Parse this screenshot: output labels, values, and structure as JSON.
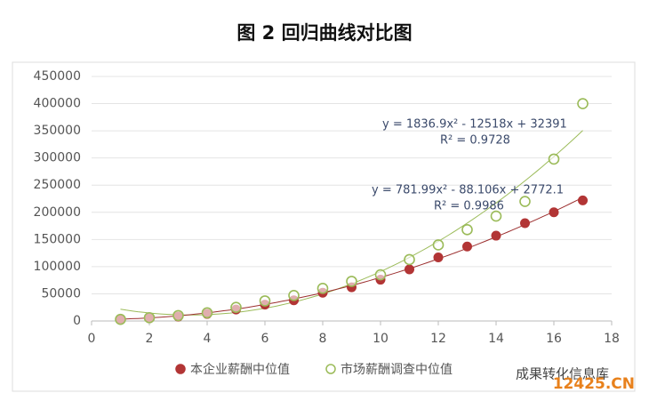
{
  "chart_data": {
    "type": "scatter",
    "title": "图 2 回归曲线对比图",
    "x": [
      1,
      2,
      3,
      4,
      5,
      6,
      7,
      8,
      9,
      10,
      11,
      12,
      13,
      14,
      15,
      16,
      17
    ],
    "series": [
      {
        "name": "本企业薪酬中位值",
        "color": "#b23535",
        "marker": "filled",
        "values": [
          3000,
          5000,
          8000,
          13000,
          21000,
          30000,
          38000,
          52000,
          62000,
          76000,
          95000,
          117000,
          137000,
          157000,
          180000,
          200000,
          222000
        ]
      },
      {
        "name": "市场薪酬调查中位值",
        "color": "#9bbb59",
        "marker": "open",
        "values": [
          3000,
          6000,
          10000,
          15000,
          25000,
          37000,
          47000,
          60000,
          73000,
          85000,
          113000,
          140000,
          168000,
          193000,
          220000,
          298000,
          400000
        ]
      }
    ],
    "trendlines": [
      {
        "color": "#9bbb59",
        "coefficients": [
          1836.9,
          -12518,
          32391
        ],
        "equation": "y = 1836.9x² - 12518x + 32391",
        "r2": "R² = 0.9728"
      },
      {
        "color": "#9c2f2f",
        "coefficients": [
          781.99,
          -88.106,
          2772.1
        ],
        "equation": "y = 781.99x² - 88.106x + 2772.1",
        "r2": "R² = 0.9986"
      }
    ],
    "xlim": [
      0,
      18
    ],
    "xticks": [
      0,
      2,
      4,
      6,
      8,
      10,
      12,
      14,
      16,
      18
    ],
    "ylim": [
      0,
      450000
    ],
    "yticks": [
      0,
      50000,
      100000,
      150000,
      200000,
      250000,
      300000,
      350000,
      400000,
      450000
    ],
    "grid": true
  },
  "watermark": {
    "text": "成果转化信息库",
    "site": "12425.CN"
  }
}
